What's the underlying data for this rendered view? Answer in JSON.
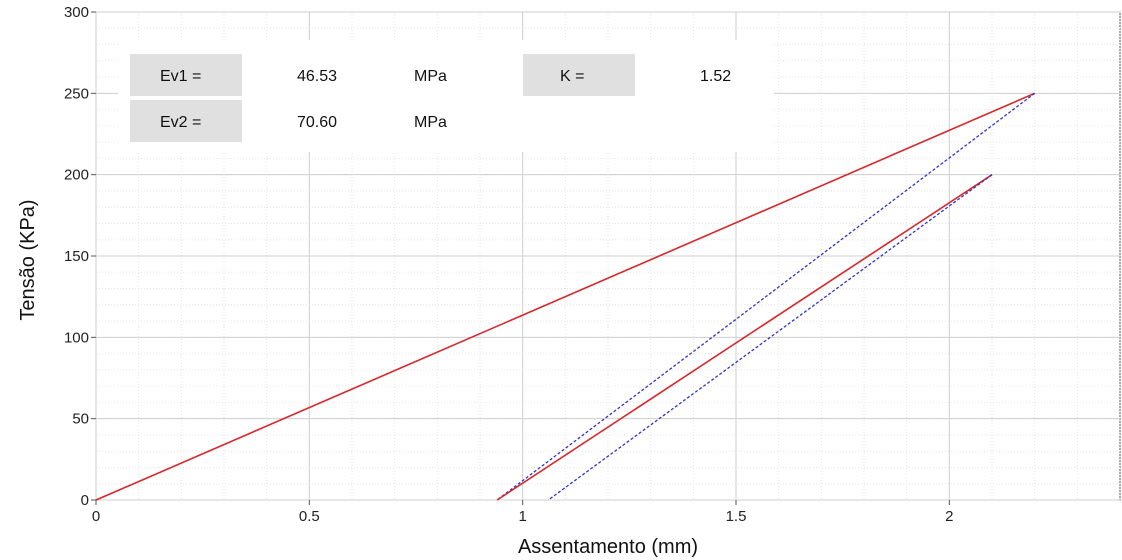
{
  "chart_data": {
    "type": "line",
    "xlabel": "Assentamento (mm)",
    "ylabel": "Tensão (KPa)",
    "xlim": [
      0,
      2.4
    ],
    "ylim": [
      0,
      300
    ],
    "x_ticks": [
      0,
      0.5,
      1,
      1.5,
      2
    ],
    "x_tick_labels": [
      "0",
      "0.5",
      "1",
      "1.5",
      "2"
    ],
    "y_ticks": [
      0,
      50,
      100,
      150,
      200,
      250,
      300
    ],
    "y_tick_labels": [
      "0",
      "50",
      "100",
      "150",
      "200",
      "250",
      "300"
    ],
    "grid": true,
    "series": [
      {
        "color": "#d8262a",
        "style": "solid",
        "points": [
          [
            0,
            0
          ],
          [
            2.2,
            250
          ]
        ]
      },
      {
        "color": "#3333cc",
        "style": "dashed",
        "points": [
          [
            2.2,
            250
          ],
          [
            0.94,
            0
          ]
        ]
      },
      {
        "color": "#d8262a",
        "style": "solid",
        "points": [
          [
            0.94,
            0
          ],
          [
            2.1,
            200
          ]
        ]
      },
      {
        "color": "#3333cc",
        "style": "dashed",
        "points": [
          [
            2.1,
            200
          ],
          [
            1.06,
            0
          ]
        ]
      }
    ]
  },
  "info_box": {
    "ev1_label": "Ev1 =",
    "ev1_value": "46.53",
    "ev1_unit": "MPa",
    "ev2_label": "Ev2 =",
    "ev2_value": "70.60",
    "ev2_unit": "MPa",
    "k_label": "K =",
    "k_value": "1.52",
    "label_bg_color": "#e0e0e0"
  }
}
